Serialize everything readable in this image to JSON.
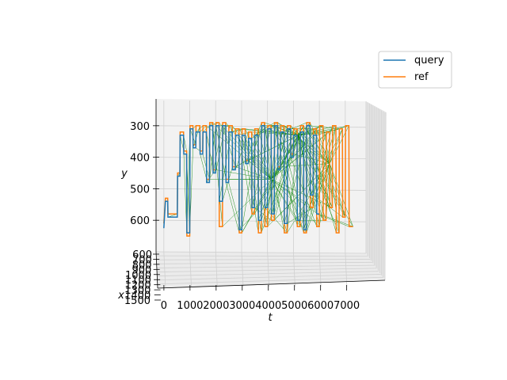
{
  "chart_data": {
    "type": "line",
    "projection": "3d",
    "xlabel": "t",
    "ylabel": "y",
    "zlabel": "x",
    "t_ticks": [
      0,
      1000,
      2000,
      3000,
      4000,
      5000,
      6000,
      7000
    ],
    "y_ticks": [
      300,
      400,
      500,
      600
    ],
    "x_ticks": [
      600,
      700,
      800,
      900,
      1000,
      1100,
      1200,
      1300,
      1400,
      1500
    ],
    "t_range": [
      -300,
      7800
    ],
    "y_range": [
      220,
      700
    ],
    "legend_position": "top-right",
    "grid": true,
    "colors": {
      "query": "#1f77b4",
      "ref": "#ff7f0e",
      "match": "#008000"
    },
    "series": [
      {
        "name": "query",
        "points": [
          [
            0,
            625
          ],
          [
            60,
            540
          ],
          [
            150,
            540
          ],
          [
            160,
            590
          ],
          [
            520,
            590
          ],
          [
            530,
            460
          ],
          [
            620,
            460
          ],
          [
            630,
            330
          ],
          [
            760,
            330
          ],
          [
            770,
            390
          ],
          [
            880,
            390
          ],
          [
            890,
            640
          ],
          [
            1000,
            640
          ],
          [
            1010,
            310
          ],
          [
            1120,
            310
          ],
          [
            1130,
            370
          ],
          [
            1230,
            370
          ],
          [
            1240,
            320
          ],
          [
            1390,
            320
          ],
          [
            1400,
            390
          ],
          [
            1500,
            390
          ],
          [
            1510,
            320
          ],
          [
            1640,
            320
          ],
          [
            1650,
            480
          ],
          [
            1760,
            480
          ],
          [
            1770,
            300
          ],
          [
            1890,
            300
          ],
          [
            1900,
            450
          ],
          [
            2000,
            450
          ],
          [
            2010,
            300
          ],
          [
            2130,
            300
          ],
          [
            2140,
            540
          ],
          [
            2260,
            540
          ],
          [
            2270,
            300
          ],
          [
            2390,
            300
          ],
          [
            2400,
            480
          ],
          [
            2500,
            480
          ],
          [
            2510,
            320
          ],
          [
            2640,
            320
          ],
          [
            2650,
            440
          ],
          [
            2760,
            440
          ],
          [
            2770,
            330
          ],
          [
            2900,
            330
          ],
          [
            2910,
            630
          ],
          [
            3010,
            630
          ],
          [
            3020,
            330
          ],
          [
            3140,
            330
          ],
          [
            3150,
            420
          ],
          [
            3260,
            420
          ],
          [
            3270,
            340
          ],
          [
            3390,
            340
          ],
          [
            3400,
            560
          ],
          [
            3500,
            560
          ],
          [
            3510,
            330
          ],
          [
            3640,
            330
          ],
          [
            3650,
            600
          ],
          [
            3760,
            600
          ],
          [
            3770,
            300
          ],
          [
            3890,
            300
          ],
          [
            3900,
            560
          ],
          [
            4000,
            560
          ],
          [
            4010,
            310
          ],
          [
            4140,
            310
          ],
          [
            4150,
            580
          ],
          [
            4260,
            580
          ],
          [
            4270,
            300
          ],
          [
            4390,
            300
          ],
          [
            4400,
            440
          ],
          [
            4500,
            440
          ],
          [
            4510,
            320
          ],
          [
            4640,
            320
          ],
          [
            4650,
            610
          ],
          [
            4760,
            610
          ],
          [
            4770,
            310
          ],
          [
            4890,
            310
          ],
          [
            4900,
            400
          ],
          [
            5000,
            400
          ],
          [
            5010,
            330
          ],
          [
            5140,
            330
          ],
          [
            5150,
            600
          ],
          [
            5260,
            600
          ],
          [
            5270,
            320
          ],
          [
            5390,
            320
          ],
          [
            5400,
            630
          ],
          [
            5500,
            630
          ],
          [
            5510,
            300
          ],
          [
            5640,
            300
          ],
          [
            5650,
            520
          ],
          [
            5760,
            520
          ],
          [
            5770,
            330
          ],
          [
            5890,
            330
          ],
          [
            5900,
            580
          ],
          [
            6000,
            580
          ]
        ]
      },
      {
        "name": "ref",
        "points": [
          [
            0,
            610
          ],
          [
            60,
            530
          ],
          [
            150,
            530
          ],
          [
            160,
            580
          ],
          [
            520,
            580
          ],
          [
            530,
            450
          ],
          [
            620,
            450
          ],
          [
            630,
            320
          ],
          [
            760,
            320
          ],
          [
            770,
            380
          ],
          [
            880,
            380
          ],
          [
            890,
            650
          ],
          [
            1000,
            650
          ],
          [
            1010,
            300
          ],
          [
            1120,
            300
          ],
          [
            1130,
            360
          ],
          [
            1230,
            360
          ],
          [
            1240,
            300
          ],
          [
            1390,
            300
          ],
          [
            1400,
            380
          ],
          [
            1500,
            380
          ],
          [
            1510,
            300
          ],
          [
            1640,
            300
          ],
          [
            1650,
            470
          ],
          [
            1760,
            470
          ],
          [
            1770,
            290
          ],
          [
            1890,
            290
          ],
          [
            1900,
            440
          ],
          [
            2000,
            440
          ],
          [
            2010,
            290
          ],
          [
            2130,
            290
          ],
          [
            2140,
            620
          ],
          [
            2260,
            620
          ],
          [
            2270,
            290
          ],
          [
            2390,
            290
          ],
          [
            2400,
            470
          ],
          [
            2500,
            470
          ],
          [
            2510,
            300
          ],
          [
            2640,
            300
          ],
          [
            2650,
            430
          ],
          [
            2760,
            430
          ],
          [
            2770,
            310
          ],
          [
            2900,
            310
          ],
          [
            2910,
            640
          ],
          [
            3010,
            640
          ],
          [
            3020,
            310
          ],
          [
            3140,
            310
          ],
          [
            3150,
            410
          ],
          [
            3260,
            410
          ],
          [
            3270,
            320
          ],
          [
            3390,
            320
          ],
          [
            3400,
            580
          ],
          [
            3500,
            580
          ],
          [
            3510,
            310
          ],
          [
            3640,
            310
          ],
          [
            3650,
            640
          ],
          [
            3760,
            640
          ],
          [
            3770,
            290
          ],
          [
            3890,
            290
          ],
          [
            3900,
            620
          ],
          [
            4000,
            620
          ],
          [
            4010,
            300
          ],
          [
            4140,
            300
          ],
          [
            4150,
            600
          ],
          [
            4260,
            600
          ],
          [
            4270,
            290
          ],
          [
            4390,
            290
          ],
          [
            4400,
            430
          ],
          [
            4500,
            430
          ],
          [
            4510,
            300
          ],
          [
            4640,
            300
          ],
          [
            4650,
            640
          ],
          [
            4760,
            640
          ],
          [
            4770,
            300
          ],
          [
            4890,
            300
          ],
          [
            4900,
            390
          ],
          [
            5000,
            390
          ],
          [
            5010,
            310
          ],
          [
            5140,
            310
          ],
          [
            5150,
            620
          ],
          [
            5260,
            620
          ],
          [
            5270,
            300
          ],
          [
            5390,
            300
          ],
          [
            5400,
            640
          ],
          [
            5500,
            640
          ],
          [
            5510,
            290
          ],
          [
            5640,
            290
          ],
          [
            5650,
            560
          ],
          [
            5760,
            560
          ],
          [
            5770,
            310
          ],
          [
            5890,
            310
          ],
          [
            5900,
            620
          ],
          [
            6000,
            620
          ],
          [
            6010,
            300
          ],
          [
            6140,
            300
          ],
          [
            6150,
            600
          ],
          [
            6260,
            600
          ],
          [
            6270,
            320
          ],
          [
            6390,
            320
          ],
          [
            6400,
            560
          ],
          [
            6500,
            560
          ],
          [
            6510,
            300
          ],
          [
            6640,
            300
          ],
          [
            6650,
            640
          ],
          [
            6760,
            640
          ],
          [
            6770,
            310
          ],
          [
            6890,
            310
          ],
          [
            6900,
            590
          ],
          [
            7000,
            590
          ],
          [
            7010,
            300
          ],
          [
            7140,
            300
          ],
          [
            7150,
            620
          ],
          [
            7300,
            620
          ]
        ]
      }
    ],
    "legend": [
      {
        "label": "query",
        "color": "#1f77b4"
      },
      {
        "label": "ref",
        "color": "#ff7f0e"
      }
    ]
  }
}
